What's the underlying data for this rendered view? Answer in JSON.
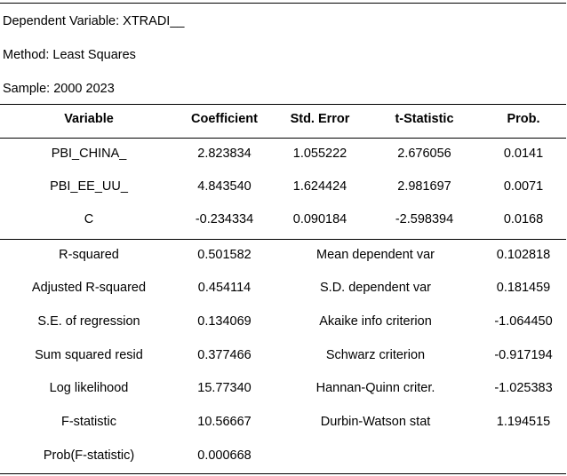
{
  "header": {
    "dependent_variable": "Dependent Variable: XTRADI__",
    "method": "Method: Least Squares",
    "sample": "Sample: 2000 2023"
  },
  "coef_table": {
    "columns": [
      "Variable",
      "Coefficient",
      "Std. Error",
      "t-Statistic",
      "Prob."
    ],
    "rows": [
      {
        "variable": "PBI_CHINA_",
        "coefficient": "2.823834",
        "std_error": "1.055222",
        "t_statistic": "2.676056",
        "prob": "0.0141"
      },
      {
        "variable": "PBI_EE_UU_",
        "coefficient": "4.843540",
        "std_error": "1.624424",
        "t_statistic": "2.981697",
        "prob": "0.0071"
      },
      {
        "variable": "C",
        "coefficient": "-0.234334",
        "std_error": "0.090184",
        "t_statistic": "-2.598394",
        "prob": "0.0168"
      }
    ]
  },
  "stats": {
    "rows": [
      {
        "label_left": "R-squared",
        "value_left": "0.501582",
        "label_right": "Mean dependent var",
        "value_right": "0.102818"
      },
      {
        "label_left": "Adjusted R-squared",
        "value_left": "0.454114",
        "label_right": "S.D. dependent var",
        "value_right": "0.181459"
      },
      {
        "label_left": "S.E. of regression",
        "value_left": "0.134069",
        "label_right": "Akaike info criterion",
        "value_right": "-1.064450"
      },
      {
        "label_left": "Sum squared resid",
        "value_left": "0.377466",
        "label_right": "Schwarz criterion",
        "value_right": "-0.917194"
      },
      {
        "label_left": "Log likelihood",
        "value_left": "15.77340",
        "label_right": "Hannan-Quinn criter.",
        "value_right": "-1.025383"
      },
      {
        "label_left": "F-statistic",
        "value_left": "10.56667",
        "label_right": "Durbin-Watson stat",
        "value_right": "1.194515"
      },
      {
        "label_left": "Prob(F-statistic)",
        "value_left": "0.000668",
        "label_right": "",
        "value_right": ""
      }
    ]
  }
}
